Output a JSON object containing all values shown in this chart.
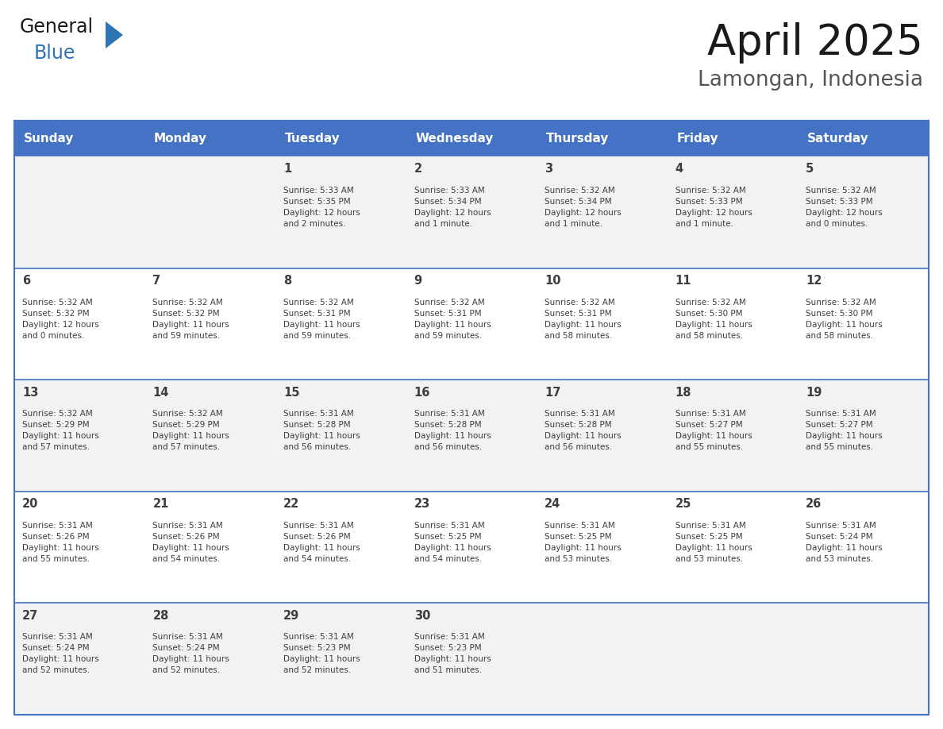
{
  "title": "April 2025",
  "subtitle": "Lamongan, Indonesia",
  "header_bg_color": "#4472C4",
  "header_text_color": "#FFFFFF",
  "row_bg_colors": [
    "#F2F2F2",
    "#FFFFFF",
    "#F2F2F2",
    "#FFFFFF",
    "#F2F2F2"
  ],
  "border_color": "#4472C4",
  "text_color": "#3D3D3D",
  "days_of_week": [
    "Sunday",
    "Monday",
    "Tuesday",
    "Wednesday",
    "Thursday",
    "Friday",
    "Saturday"
  ],
  "calendar_data": [
    [
      {
        "day": "",
        "info": ""
      },
      {
        "day": "",
        "info": ""
      },
      {
        "day": "1",
        "info": "Sunrise: 5:33 AM\nSunset: 5:35 PM\nDaylight: 12 hours\nand 2 minutes."
      },
      {
        "day": "2",
        "info": "Sunrise: 5:33 AM\nSunset: 5:34 PM\nDaylight: 12 hours\nand 1 minute."
      },
      {
        "day": "3",
        "info": "Sunrise: 5:32 AM\nSunset: 5:34 PM\nDaylight: 12 hours\nand 1 minute."
      },
      {
        "day": "4",
        "info": "Sunrise: 5:32 AM\nSunset: 5:33 PM\nDaylight: 12 hours\nand 1 minute."
      },
      {
        "day": "5",
        "info": "Sunrise: 5:32 AM\nSunset: 5:33 PM\nDaylight: 12 hours\nand 0 minutes."
      }
    ],
    [
      {
        "day": "6",
        "info": "Sunrise: 5:32 AM\nSunset: 5:32 PM\nDaylight: 12 hours\nand 0 minutes."
      },
      {
        "day": "7",
        "info": "Sunrise: 5:32 AM\nSunset: 5:32 PM\nDaylight: 11 hours\nand 59 minutes."
      },
      {
        "day": "8",
        "info": "Sunrise: 5:32 AM\nSunset: 5:31 PM\nDaylight: 11 hours\nand 59 minutes."
      },
      {
        "day": "9",
        "info": "Sunrise: 5:32 AM\nSunset: 5:31 PM\nDaylight: 11 hours\nand 59 minutes."
      },
      {
        "day": "10",
        "info": "Sunrise: 5:32 AM\nSunset: 5:31 PM\nDaylight: 11 hours\nand 58 minutes."
      },
      {
        "day": "11",
        "info": "Sunrise: 5:32 AM\nSunset: 5:30 PM\nDaylight: 11 hours\nand 58 minutes."
      },
      {
        "day": "12",
        "info": "Sunrise: 5:32 AM\nSunset: 5:30 PM\nDaylight: 11 hours\nand 58 minutes."
      }
    ],
    [
      {
        "day": "13",
        "info": "Sunrise: 5:32 AM\nSunset: 5:29 PM\nDaylight: 11 hours\nand 57 minutes."
      },
      {
        "day": "14",
        "info": "Sunrise: 5:32 AM\nSunset: 5:29 PM\nDaylight: 11 hours\nand 57 minutes."
      },
      {
        "day": "15",
        "info": "Sunrise: 5:31 AM\nSunset: 5:28 PM\nDaylight: 11 hours\nand 56 minutes."
      },
      {
        "day": "16",
        "info": "Sunrise: 5:31 AM\nSunset: 5:28 PM\nDaylight: 11 hours\nand 56 minutes."
      },
      {
        "day": "17",
        "info": "Sunrise: 5:31 AM\nSunset: 5:28 PM\nDaylight: 11 hours\nand 56 minutes."
      },
      {
        "day": "18",
        "info": "Sunrise: 5:31 AM\nSunset: 5:27 PM\nDaylight: 11 hours\nand 55 minutes."
      },
      {
        "day": "19",
        "info": "Sunrise: 5:31 AM\nSunset: 5:27 PM\nDaylight: 11 hours\nand 55 minutes."
      }
    ],
    [
      {
        "day": "20",
        "info": "Sunrise: 5:31 AM\nSunset: 5:26 PM\nDaylight: 11 hours\nand 55 minutes."
      },
      {
        "day": "21",
        "info": "Sunrise: 5:31 AM\nSunset: 5:26 PM\nDaylight: 11 hours\nand 54 minutes."
      },
      {
        "day": "22",
        "info": "Sunrise: 5:31 AM\nSunset: 5:26 PM\nDaylight: 11 hours\nand 54 minutes."
      },
      {
        "day": "23",
        "info": "Sunrise: 5:31 AM\nSunset: 5:25 PM\nDaylight: 11 hours\nand 54 minutes."
      },
      {
        "day": "24",
        "info": "Sunrise: 5:31 AM\nSunset: 5:25 PM\nDaylight: 11 hours\nand 53 minutes."
      },
      {
        "day": "25",
        "info": "Sunrise: 5:31 AM\nSunset: 5:25 PM\nDaylight: 11 hours\nand 53 minutes."
      },
      {
        "day": "26",
        "info": "Sunrise: 5:31 AM\nSunset: 5:24 PM\nDaylight: 11 hours\nand 53 minutes."
      }
    ],
    [
      {
        "day": "27",
        "info": "Sunrise: 5:31 AM\nSunset: 5:24 PM\nDaylight: 11 hours\nand 52 minutes."
      },
      {
        "day": "28",
        "info": "Sunrise: 5:31 AM\nSunset: 5:24 PM\nDaylight: 11 hours\nand 52 minutes."
      },
      {
        "day": "29",
        "info": "Sunrise: 5:31 AM\nSunset: 5:23 PM\nDaylight: 11 hours\nand 52 minutes."
      },
      {
        "day": "30",
        "info": "Sunrise: 5:31 AM\nSunset: 5:23 PM\nDaylight: 11 hours\nand 51 minutes."
      },
      {
        "day": "",
        "info": ""
      },
      {
        "day": "",
        "info": ""
      },
      {
        "day": "",
        "info": ""
      }
    ]
  ],
  "logo_general_color": "#1a1a1a",
  "logo_blue_color": "#2E75B6",
  "logo_triangle_color": "#2E75B6",
  "title_color": "#1a1a1a",
  "subtitle_color": "#555555",
  "fig_width": 11.88,
  "fig_height": 9.18,
  "fig_dpi": 100
}
